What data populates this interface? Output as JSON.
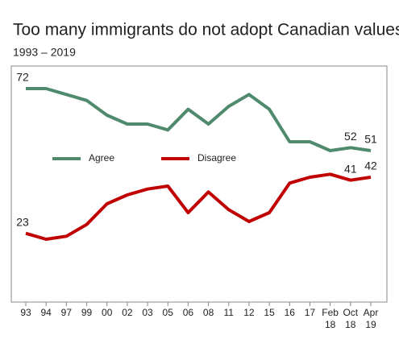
{
  "chart_data": {
    "type": "line",
    "title": "Too many immigrants do not adopt Canadian values",
    "subtitle": "1993 – 2019",
    "categories": [
      "93",
      "94",
      "97",
      "99",
      "00",
      "02",
      "03",
      "05",
      "06",
      "08",
      "11",
      "12",
      "15",
      "16",
      "17",
      "Feb 18",
      "Oct 18",
      "Apr 19"
    ],
    "series": [
      {
        "name": "Agree",
        "color": "#4e8a6b",
        "values": [
          72,
          72,
          70,
          68,
          63,
          60,
          60,
          58,
          65,
          60,
          66,
          70,
          65,
          54,
          54,
          51,
          52,
          51
        ],
        "data_labels_at": [
          0,
          16,
          17
        ]
      },
      {
        "name": "Disagree",
        "color": "#c00000",
        "values": [
          23,
          21,
          22,
          26,
          33,
          36,
          38,
          39,
          30,
          37,
          31,
          27,
          30,
          40,
          42,
          43,
          41,
          42
        ],
        "data_labels_at": [
          0,
          16,
          17
        ]
      }
    ],
    "legend": "center"
  }
}
